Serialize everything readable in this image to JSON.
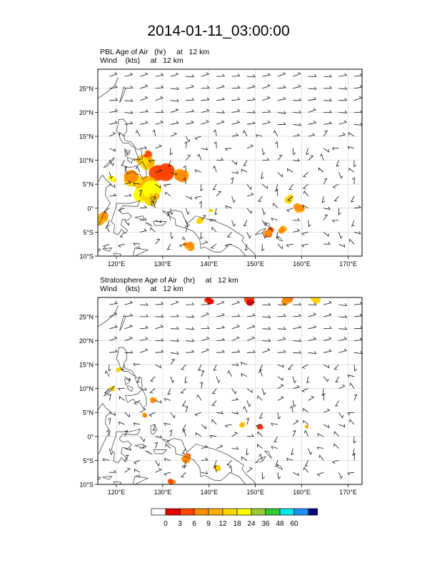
{
  "title": "2014-01-11_03:00:00",
  "panels": [
    {
      "id": "pbl",
      "line1": "PBL Age of Air   (hr)     at   12 km",
      "line2": "Wind    (kts)     at   12 km"
    },
    {
      "id": "strat",
      "line1": "Stratosphere Age of Air   (hr)     at   12 km",
      "line2": "Wind    (kts)     at   12 km"
    }
  ],
  "lat_labels": [
    "25°N",
    "20°N",
    "15°N",
    "10°N",
    "5°N",
    "0°",
    "5°S",
    "10°S"
  ],
  "lon_labels": [
    "120°E",
    "130°E",
    "140°E",
    "150°E",
    "160°E",
    "170°E"
  ],
  "colorbar": {
    "labels": [
      "0",
      "3",
      "6",
      "9",
      "12",
      "18",
      "24",
      "36",
      "48",
      "60"
    ],
    "colors": [
      "#ffffff",
      "#e60000",
      "#ff4500",
      "#ff8c00",
      "#ffb000",
      "#ffd700",
      "#ffff00",
      "#9acd32",
      "#32cd32",
      "#00e5e5",
      "#1e90ff",
      "#00007f"
    ]
  },
  "chart_data": {
    "type": "map",
    "projection": "cylindrical-equidistant",
    "lon_range": [
      116,
      173
    ],
    "lat_range": [
      -10,
      29
    ],
    "lon_ticks": [
      120,
      130,
      140,
      150,
      160,
      170
    ],
    "lat_ticks": [
      25,
      20,
      15,
      10,
      5,
      0,
      -5,
      -10
    ],
    "field_units": "hr",
    "level": "12 km",
    "pbl_blobs": [
      {
        "lon": 126,
        "lat": 9.5,
        "r": 2.0,
        "value": 12
      },
      {
        "lon": 130,
        "lat": 7.5,
        "r": 2.2,
        "value": 6
      },
      {
        "lon": 134,
        "lat": 6.5,
        "r": 1.6,
        "value": 9
      },
      {
        "lon": 126,
        "lat": 4.0,
        "r": 2.8,
        "value": 18
      },
      {
        "lon": 123,
        "lat": 6.5,
        "r": 1.8,
        "value": 12
      },
      {
        "lon": 128,
        "lat": 2.0,
        "r": 1.3,
        "value": 12
      },
      {
        "lon": 117,
        "lat": -2.0,
        "r": 1.5,
        "value": 9
      },
      {
        "lon": 119,
        "lat": 6.0,
        "r": 0.8,
        "value": 18
      },
      {
        "lon": 138,
        "lat": -2.5,
        "r": 0.8,
        "value": 18
      },
      {
        "lon": 135.5,
        "lat": -8.0,
        "r": 1.0,
        "value": 9
      },
      {
        "lon": 153,
        "lat": -5.0,
        "r": 1.0,
        "value": 6
      },
      {
        "lon": 156,
        "lat": -4.5,
        "r": 0.8,
        "value": 9
      },
      {
        "lon": 157,
        "lat": 2.0,
        "r": 1.0,
        "value": 12
      },
      {
        "lon": 159.5,
        "lat": 0.0,
        "r": 1.0,
        "value": 9
      },
      {
        "lon": 127,
        "lat": 11.5,
        "r": 1.0,
        "value": 6
      },
      {
        "lon": 140.5,
        "lat": -0.5,
        "r": 0.4,
        "value": 18
      }
    ],
    "strat_blobs": [
      {
        "lon": 149,
        "lat": 28.6,
        "r": 1.3,
        "value": 3
      },
      {
        "lon": 140,
        "lat": 28.6,
        "r": 1.0,
        "value": 3
      },
      {
        "lon": 157,
        "lat": 28.6,
        "r": 1.1,
        "value": 6
      },
      {
        "lon": 163,
        "lat": 28.6,
        "r": 1.0,
        "value": 12
      },
      {
        "lon": 120.5,
        "lat": 14.0,
        "r": 0.6,
        "value": 12
      },
      {
        "lon": 119,
        "lat": 10.0,
        "r": 0.5,
        "value": 18
      },
      {
        "lon": 128,
        "lat": 7.5,
        "r": 0.6,
        "value": 9
      },
      {
        "lon": 151,
        "lat": 2.0,
        "r": 0.7,
        "value": 3
      },
      {
        "lon": 147,
        "lat": 2.5,
        "r": 0.6,
        "value": 12
      },
      {
        "lon": 135,
        "lat": -4.5,
        "r": 1.0,
        "value": 6
      },
      {
        "lon": 142,
        "lat": -6.5,
        "r": 0.7,
        "value": 12
      },
      {
        "lon": 132,
        "lat": -9.5,
        "r": 0.8,
        "value": 6
      },
      {
        "lon": 161,
        "lat": 2.0,
        "r": 0.4,
        "value": 12
      },
      {
        "lon": 126,
        "lat": 4.5,
        "r": 0.5,
        "value": 9
      }
    ]
  }
}
